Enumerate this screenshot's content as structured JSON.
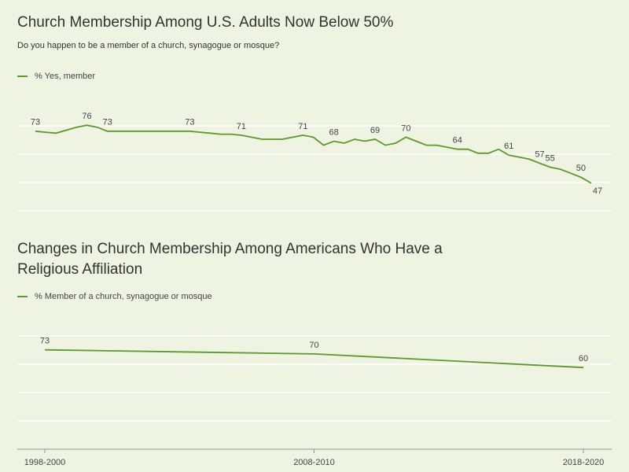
{
  "chart_data": [
    {
      "type": "line",
      "title": "Church Membership Among U.S. Adults Now Below 50%",
      "subtitle": "Do you happen to be a member of a church, synagogue or mosque?",
      "categories": [
        null,
        null,
        null,
        null,
        null,
        null,
        null,
        null,
        null,
        null,
        null,
        null,
        null,
        null,
        null,
        null,
        null,
        null,
        null,
        null,
        null,
        null,
        null,
        null,
        null,
        null,
        null,
        null,
        null,
        null,
        null,
        null,
        null,
        null,
        null,
        null,
        null,
        null,
        null,
        null,
        null,
        null,
        null,
        null,
        null,
        null,
        null,
        null,
        null,
        null,
        null,
        null,
        null,
        null,
        null
      ],
      "series": [
        {
          "name": "% Yes, member",
          "color": "#5a9a2c",
          "values": [
            73,
            72.5,
            72,
            73.5,
            75,
            76,
            75,
            73,
            73,
            73,
            73,
            73,
            73,
            73,
            73,
            73,
            72.5,
            72,
            71.5,
            71.5,
            71,
            70,
            69,
            69,
            69,
            70,
            71,
            70,
            66,
            68,
            67,
            69,
            68,
            69,
            66,
            67,
            70,
            68,
            66,
            66,
            65,
            64,
            64,
            62,
            62,
            64,
            61,
            60,
            59,
            57,
            55,
            54,
            52,
            50,
            47
          ],
          "value_labels": [
            "73",
            null,
            null,
            null,
            null,
            "76",
            null,
            "73",
            null,
            null,
            null,
            null,
            null,
            null,
            null,
            "73",
            null,
            null,
            null,
            null,
            "71",
            null,
            null,
            null,
            null,
            null,
            "71",
            null,
            null,
            "68",
            null,
            null,
            null,
            "69",
            null,
            null,
            "70",
            null,
            null,
            null,
            null,
            "64",
            null,
            null,
            null,
            null,
            "61",
            null,
            null,
            "57",
            "55",
            null,
            null,
            "50",
            "47"
          ]
        }
      ],
      "ylim": [
        32,
        80
      ]
    },
    {
      "type": "line",
      "title": "Changes in Church Membership Among Americans Who Have a Religious Affiliation",
      "categories": [
        "1998-2000",
        "2008-2010",
        "2018-2020"
      ],
      "series": [
        {
          "name": "% Member of a church, synagogue or mosque",
          "color": "#5a9a2c",
          "values": [
            73,
            70,
            60
          ],
          "value_labels": [
            "73",
            "70",
            "60"
          ]
        }
      ],
      "ylim": [
        0,
        100
      ]
    }
  ]
}
